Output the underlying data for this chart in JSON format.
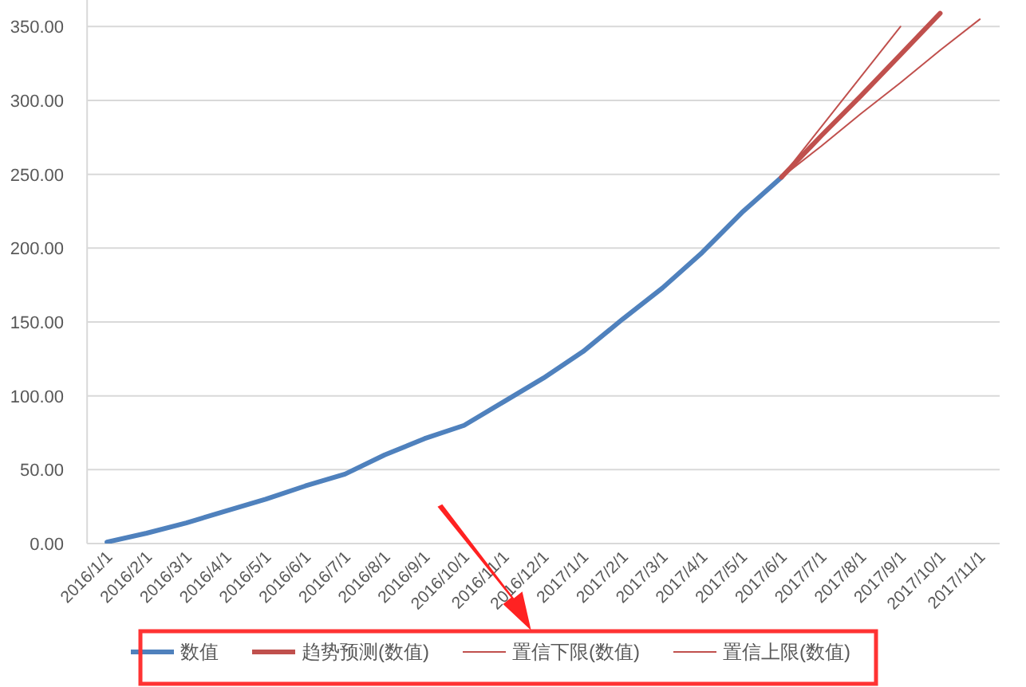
{
  "chart_data": {
    "type": "line",
    "categories": [
      "2016/1/1",
      "2016/2/1",
      "2016/3/1",
      "2016/4/1",
      "2016/5/1",
      "2016/6/1",
      "2016/7/1",
      "2016/8/1",
      "2016/9/1",
      "2016/10/1",
      "2016/11/1",
      "2016/12/1",
      "2017/1/1",
      "2017/2/1",
      "2017/3/1",
      "2017/4/1",
      "2017/5/1",
      "2017/6/1",
      "2017/7/1",
      "2017/8/1",
      "2017/9/1",
      "2017/10/1",
      "2017/11/1"
    ],
    "series": [
      {
        "name": "数值",
        "color": "#4f81bd",
        "values": [
          1,
          7,
          14,
          22,
          30,
          39,
          47,
          60,
          71,
          80,
          96,
          112,
          130,
          152,
          173,
          197,
          224,
          248,
          null,
          null,
          null,
          null,
          null
        ]
      },
      {
        "name": "趋势预测(数值)",
        "color": "#c0504d",
        "values": [
          null,
          null,
          null,
          null,
          null,
          null,
          null,
          null,
          null,
          null,
          null,
          null,
          null,
          null,
          null,
          null,
          null,
          248,
          276,
          303,
          331,
          359,
          null
        ]
      },
      {
        "name": "置信下限(数值)",
        "color": "#c0504d",
        "values": [
          null,
          null,
          null,
          null,
          null,
          null,
          null,
          null,
          null,
          null,
          null,
          null,
          null,
          null,
          null,
          null,
          null,
          248,
          269,
          291,
          312,
          334,
          355
        ]
      },
      {
        "name": "置信上限(数值)",
        "color": "#c0504d",
        "values": [
          null,
          null,
          null,
          null,
          null,
          null,
          null,
          null,
          null,
          null,
          null,
          null,
          null,
          null,
          null,
          null,
          null,
          248,
          282,
          316,
          350,
          null,
          null
        ]
      }
    ],
    "ylim": [
      0,
      368
    ],
    "yticks": [
      {
        "value": 0,
        "label": "0.00"
      },
      {
        "value": 50,
        "label": "50.00"
      },
      {
        "value": 100,
        "label": "100.00"
      },
      {
        "value": 150,
        "label": "150.00"
      },
      {
        "value": 200,
        "label": "200.00"
      },
      {
        "value": 250,
        "label": "250.00"
      },
      {
        "value": 300,
        "label": "300.00"
      },
      {
        "value": 350,
        "label": "350.00"
      }
    ],
    "grid": "y",
    "legend": "bottom"
  }
}
